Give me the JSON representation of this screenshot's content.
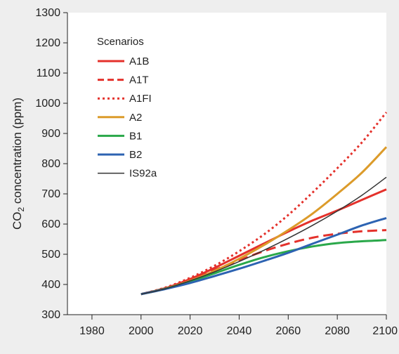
{
  "chart_data": {
    "type": "line",
    "xlabel": "",
    "ylabel_main": "CO",
    "ylabel_sub": "2",
    "ylabel_rest": " concentration (ppm)",
    "xlim": [
      1970,
      2100
    ],
    "ylim": [
      300,
      1300
    ],
    "xticks": [
      1980,
      2000,
      2020,
      2040,
      2060,
      2080,
      2100
    ],
    "yticks": [
      300,
      400,
      500,
      600,
      700,
      800,
      900,
      1000,
      1100,
      1200,
      1300
    ],
    "legend_title": "Scenarios",
    "legend_position": "top-left",
    "x": [
      2000,
      2010,
      2020,
      2030,
      2040,
      2050,
      2060,
      2070,
      2080,
      2090,
      2100
    ],
    "series": [
      {
        "name": "A1B",
        "color": "#e4312b",
        "style": "solid",
        "width": 3,
        "values": [
          368,
          388,
          418,
          455,
          495,
          535,
          575,
          612,
          645,
          680,
          715
        ]
      },
      {
        "name": "A1T",
        "color": "#e4312b",
        "style": "dashed",
        "width": 3,
        "values": [
          368,
          388,
          416,
          448,
          480,
          510,
          535,
          555,
          568,
          576,
          580
        ]
      },
      {
        "name": "A1FI",
        "color": "#e4312b",
        "style": "dotted",
        "width": 3,
        "values": [
          368,
          390,
          422,
          462,
          510,
          565,
          630,
          705,
          785,
          870,
          970
        ]
      },
      {
        "name": "A2",
        "color": "#dc9b2a",
        "style": "solid",
        "width": 3,
        "values": [
          368,
          386,
          412,
          445,
          485,
          530,
          580,
          635,
          700,
          770,
          855
        ]
      },
      {
        "name": "B1",
        "color": "#2aa84a",
        "style": "solid",
        "width": 3,
        "values": [
          368,
          386,
          410,
          437,
          465,
          490,
          510,
          526,
          537,
          543,
          547
        ]
      },
      {
        "name": "B2",
        "color": "#2d63b2",
        "style": "solid",
        "width": 3,
        "values": [
          368,
          385,
          405,
          428,
          452,
          478,
          505,
          535,
          565,
          595,
          620
        ]
      },
      {
        "name": "IS92a",
        "color": "#333333",
        "style": "solid",
        "width": 1.5,
        "values": [
          368,
          386,
          412,
          442,
          476,
          513,
          553,
          596,
          643,
          695,
          755
        ]
      }
    ]
  }
}
